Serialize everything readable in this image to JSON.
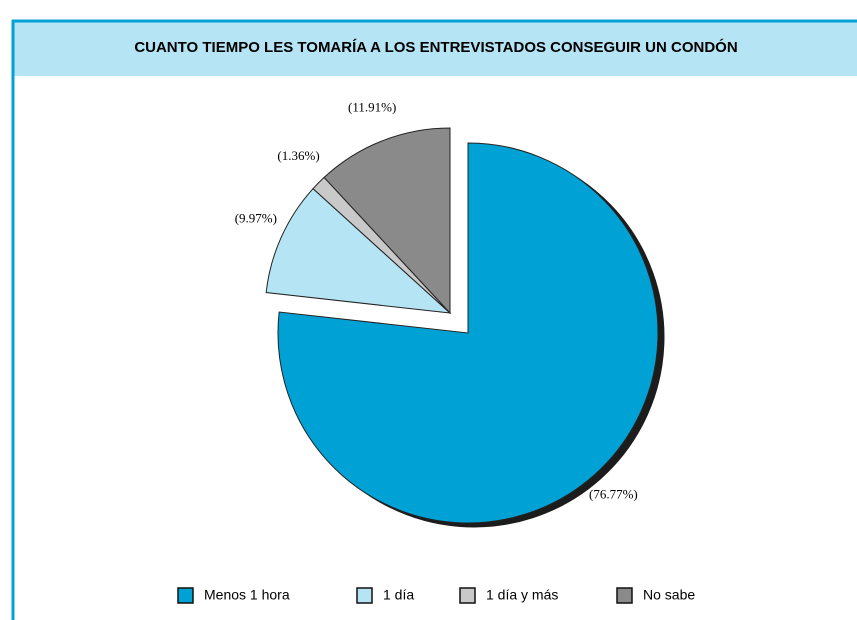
{
  "chart_data": {
    "type": "pie",
    "title": "CUANTO TIEMPO LES TOMARÍA A LOS ENTREVISTADOS CONSEGUIR UN CONDÓN",
    "categories": [
      "Menos 1 hora",
      "1 día",
      "1 día y más",
      "No sabe"
    ],
    "values": [
      76.77,
      9.97,
      1.36,
      11.91
    ],
    "value_labels": [
      "(76.77%)",
      "(9.97%)",
      "(1.36%)",
      "(11.91%)"
    ],
    "colors": [
      "#00a2d6",
      "#b5e4f4",
      "#c9c9c9",
      "#8a8a8a"
    ],
    "exploded": [
      0
    ],
    "legend": "bottom"
  }
}
